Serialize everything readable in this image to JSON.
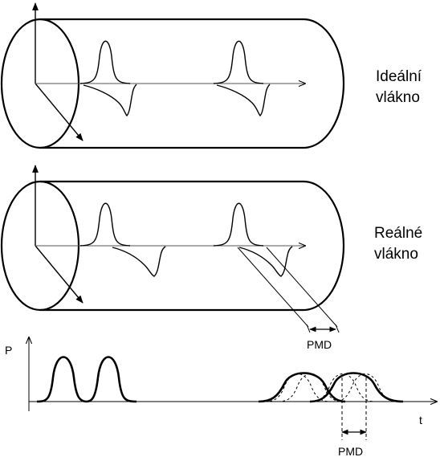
{
  "labels": {
    "ideal_line1": "Ideální",
    "ideal_line2": "vlákno",
    "real_line1": "Reálné",
    "real_line2": "vlákno",
    "axis_p": "P",
    "axis_t": "t",
    "pmd_top": "PMD",
    "pmd_bottom": "PMD"
  },
  "colors": {
    "stroke": "#000000",
    "background": "#ffffff"
  }
}
